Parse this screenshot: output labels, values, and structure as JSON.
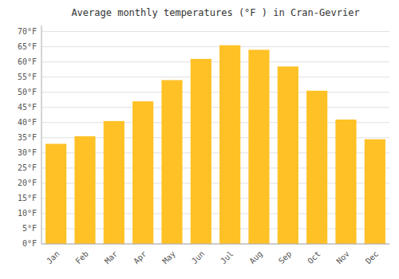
{
  "chart_data": {
    "type": "bar",
    "title": "Average monthly temperatures (°F ) in Cran-Gevrier",
    "categories": [
      "Jan",
      "Feb",
      "Mar",
      "Apr",
      "May",
      "Jun",
      "Jul",
      "Aug",
      "Sep",
      "Oct",
      "Nov",
      "Dec"
    ],
    "values": [
      33,
      35.5,
      40.5,
      47,
      54,
      61,
      65.5,
      64,
      58.5,
      50.5,
      41,
      34.5
    ],
    "color": "#FFC125",
    "ylim": [
      0,
      72
    ],
    "yticks": [
      {
        "value": 0,
        "label": "0°F"
      },
      {
        "value": 5,
        "label": "5°F"
      },
      {
        "value": 10,
        "label": "10°F"
      },
      {
        "value": 15,
        "label": "15°F"
      },
      {
        "value": 20,
        "label": "20°F"
      },
      {
        "value": 25,
        "label": "25°F"
      },
      {
        "value": 30,
        "label": "30°F"
      },
      {
        "value": 35,
        "label": "35°F"
      },
      {
        "value": 40,
        "label": "40°F"
      },
      {
        "value": 45,
        "label": "45°F"
      },
      {
        "value": 50,
        "label": "50°F"
      },
      {
        "value": 55,
        "label": "55°F"
      },
      {
        "value": 60,
        "label": "60°F"
      },
      {
        "value": 65,
        "label": "65°F"
      },
      {
        "value": 70,
        "label": "70°F"
      }
    ],
    "grid": true
  }
}
